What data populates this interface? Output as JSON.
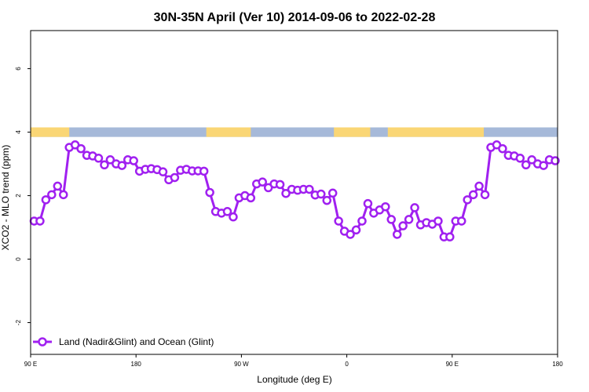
{
  "chart_data": {
    "type": "line",
    "title": "30N-35N April (Ver 10)   2014-09-06 to 2022-02-28",
    "xlabel": "Longitude (deg E)",
    "ylabel": "XCO2 - MLO trend (ppm)",
    "xlim": [
      90,
      540
    ],
    "ylim": [
      -3,
      7.2
    ],
    "x_ticks": [
      {
        "value": 90,
        "label": "90 E"
      },
      {
        "value": 180,
        "label": "180"
      },
      {
        "value": 270,
        "label": "90 W"
      },
      {
        "value": 360,
        "label": "0"
      },
      {
        "value": 450,
        "label": "90 E"
      },
      {
        "value": 540,
        "label": "180"
      }
    ],
    "y_ticks": [
      {
        "value": -2,
        "label": "-2"
      },
      {
        "value": 0,
        "label": "0"
      },
      {
        "value": 2,
        "label": "2"
      },
      {
        "value": 4,
        "label": "4"
      },
      {
        "value": 6,
        "label": "6"
      }
    ],
    "land_ocean_band": {
      "y_range": [
        3.85,
        4.15
      ],
      "ocean_color": "#a6b9d9",
      "land_color": "#fad675",
      "land_segments": [
        [
          90,
          123
        ],
        [
          240,
          278
        ],
        [
          349,
          380
        ],
        [
          395,
          477
        ]
      ]
    },
    "series": [
      {
        "name": "Land (Nadir&Glint) and Ocean (Glint)",
        "color": "#a020f0",
        "x": [
          93,
          98,
          103,
          108,
          113,
          118,
          123,
          128,
          133,
          138,
          143,
          148,
          153,
          158,
          163,
          168,
          173,
          178,
          183,
          188,
          193,
          198,
          203,
          208,
          213,
          218,
          223,
          228,
          233,
          238,
          243,
          248,
          253,
          258,
          263,
          268,
          273,
          278,
          283,
          288,
          293,
          298,
          303,
          308,
          313,
          318,
          323,
          328,
          333,
          338,
          343,
          348,
          353,
          358,
          363,
          368,
          373,
          378,
          383,
          388,
          393,
          398,
          403,
          408,
          413,
          418,
          423,
          428,
          433,
          438,
          443,
          448,
          453,
          458,
          463,
          468,
          473,
          478,
          483,
          488,
          493,
          498,
          503,
          508,
          513,
          518,
          523,
          528,
          533,
          538
        ],
        "y": [
          1.2,
          1.2,
          1.87,
          2.03,
          2.3,
          2.03,
          3.52,
          3.6,
          3.48,
          3.27,
          3.25,
          3.18,
          2.97,
          3.13,
          3.0,
          2.95,
          3.13,
          3.1,
          2.77,
          2.83,
          2.85,
          2.82,
          2.75,
          2.5,
          2.57,
          2.8,
          2.83,
          2.78,
          2.78,
          2.77,
          2.1,
          1.5,
          1.45,
          1.5,
          1.33,
          1.93,
          2.0,
          1.93,
          2.37,
          2.43,
          2.25,
          2.37,
          2.35,
          2.07,
          2.2,
          2.17,
          2.2,
          2.2,
          2.02,
          2.05,
          1.85,
          2.08,
          1.2,
          0.88,
          0.78,
          0.92,
          1.2,
          1.75,
          1.45,
          1.55,
          1.65,
          1.25,
          0.78,
          1.05,
          1.25,
          1.62,
          1.08,
          1.15,
          1.1,
          1.2,
          0.7,
          0.7,
          1.2,
          1.2,
          1.87,
          2.03,
          2.3,
          2.03,
          3.52,
          3.6,
          3.48,
          3.27,
          3.25,
          3.18,
          2.97,
          3.13,
          3.0,
          2.95,
          3.13,
          3.1
        ]
      }
    ],
    "legend": {
      "position": "bottom-left"
    },
    "grid": false
  }
}
